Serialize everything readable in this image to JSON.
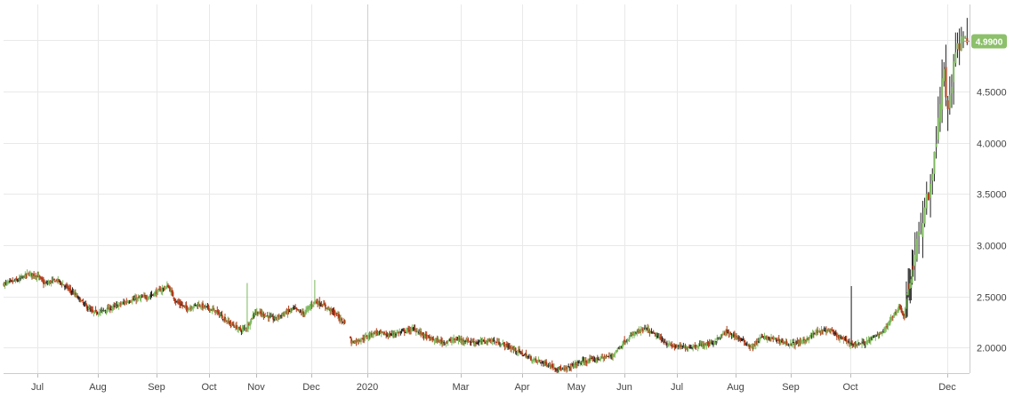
{
  "chart_data": {
    "type": "candlestick",
    "title": "",
    "xlabel": "",
    "ylabel": "",
    "ylim": [
      1.75,
      5.35
    ],
    "y_ticks": [
      "2.0000",
      "2.5000",
      "3.0000",
      "3.5000",
      "4.0000",
      "4.5000",
      "4.9900"
    ],
    "x_ticks": [
      "Jul",
      "Aug",
      "Sep",
      "Oct",
      "Nov",
      "Dec",
      "2020",
      "Mar",
      "Apr",
      "May",
      "Jun",
      "Jul",
      "Aug",
      "Sep",
      "Oct",
      "Dec"
    ],
    "last_value": "4.9900",
    "grid": true,
    "colors": {
      "up": "#7cb85c",
      "down": "#b03a18",
      "doji": "#222222",
      "badge": "#8cc06a",
      "grid": "#e9e9e9",
      "divider": "#cfcfcf"
    },
    "waypoints": [
      [
        0,
        2.62
      ],
      [
        15,
        2.66
      ],
      [
        25,
        2.72
      ],
      [
        35,
        2.7
      ],
      [
        42,
        2.62
      ],
      [
        55,
        2.66
      ],
      [
        70,
        2.55
      ],
      [
        80,
        2.45
      ],
      [
        92,
        2.34
      ],
      [
        100,
        2.35
      ],
      [
        115,
        2.4
      ],
      [
        130,
        2.46
      ],
      [
        140,
        2.48
      ],
      [
        150,
        2.5
      ],
      [
        160,
        2.55
      ],
      [
        170,
        2.6
      ],
      [
        178,
        2.45
      ],
      [
        190,
        2.38
      ],
      [
        200,
        2.42
      ],
      [
        210,
        2.39
      ],
      [
        220,
        2.35
      ],
      [
        232,
        2.25
      ],
      [
        245,
        2.17
      ],
      [
        252,
        2.2
      ],
      [
        260,
        2.35
      ],
      [
        270,
        2.32
      ],
      [
        280,
        2.28
      ],
      [
        290,
        2.33
      ],
      [
        300,
        2.38
      ],
      [
        310,
        2.33
      ],
      [
        322,
        2.45
      ],
      [
        330,
        2.42
      ],
      [
        345,
        2.32
      ],
      [
        349,
        2.27
      ],
      [
        353,
        2.25
      ],
      [
        360,
        2.05
      ],
      [
        370,
        2.08
      ],
      [
        385,
        2.15
      ],
      [
        398,
        2.12
      ],
      [
        410,
        2.15
      ],
      [
        425,
        2.18
      ],
      [
        440,
        2.09
      ],
      [
        455,
        2.05
      ],
      [
        470,
        2.08
      ],
      [
        490,
        2.05
      ],
      [
        505,
        2.07
      ],
      [
        520,
        2.02
      ],
      [
        535,
        1.95
      ],
      [
        548,
        1.88
      ],
      [
        560,
        1.85
      ],
      [
        572,
        1.8
      ],
      [
        580,
        1.78
      ],
      [
        595,
        1.85
      ],
      [
        610,
        1.88
      ],
      [
        620,
        1.9
      ],
      [
        630,
        1.92
      ],
      [
        642,
        2.05
      ],
      [
        655,
        2.15
      ],
      [
        665,
        2.18
      ],
      [
        675,
        2.12
      ],
      [
        690,
        2.02
      ],
      [
        705,
        2.0
      ],
      [
        720,
        2.02
      ],
      [
        735,
        2.05
      ],
      [
        748,
        2.15
      ],
      [
        760,
        2.1
      ],
      [
        775,
        2.0
      ],
      [
        785,
        2.1
      ],
      [
        800,
        2.08
      ],
      [
        815,
        2.03
      ],
      [
        828,
        2.06
      ],
      [
        842,
        2.15
      ],
      [
        855,
        2.17
      ],
      [
        865,
        2.1
      ],
      [
        880,
        2.03
      ],
      [
        893,
        2.05
      ],
      [
        905,
        2.12
      ],
      [
        915,
        2.2
      ],
      [
        920,
        2.3
      ],
      [
        928,
        2.4
      ],
      [
        933,
        2.3
      ],
      [
        936,
        2.55
      ],
      [
        942,
        2.75
      ],
      [
        948,
        3.1
      ],
      [
        954,
        3.35
      ],
      [
        960,
        3.6
      ],
      [
        966,
        4.05
      ],
      [
        970,
        4.4
      ],
      [
        974,
        4.7
      ],
      [
        978,
        4.3
      ],
      [
        982,
        4.6
      ],
      [
        986,
        4.85
      ],
      [
        990,
        4.95
      ],
      [
        994,
        5.05
      ],
      [
        998,
        4.99
      ]
    ],
    "spikes": [
      [
        252,
        2.63
      ],
      [
        322,
        2.66
      ],
      [
        656,
        2.18
      ],
      [
        878,
        2.6
      ]
    ],
    "gap_after_index": 353,
    "sparse_from_index": 943,
    "last_index": 998
  }
}
